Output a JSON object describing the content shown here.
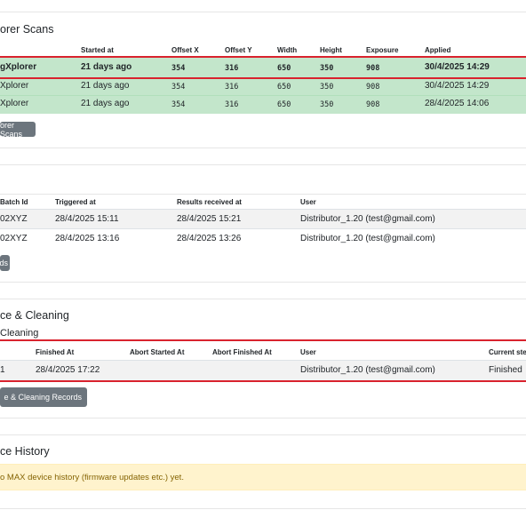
{
  "explorer_scans": {
    "title": "orer Scans",
    "columns": [
      "Started at",
      "Offset X",
      "Offset Y",
      "Width",
      "Height",
      "Exposure",
      "Applied"
    ],
    "rows": [
      {
        "name": "gXplorer",
        "started": "21 days ago",
        "offset_x": "354",
        "offset_y": "316",
        "width": "650",
        "height": "350",
        "exposure": "908",
        "applied": "30/4/2025 14:29"
      },
      {
        "name": "Xplorer",
        "started": "21 days ago",
        "offset_x": "354",
        "offset_y": "316",
        "width": "650",
        "height": "350",
        "exposure": "908",
        "applied": "30/4/2025 14:29"
      },
      {
        "name": "Xplorer",
        "started": "21 days ago",
        "offset_x": "354",
        "offset_y": "316",
        "width": "650",
        "height": "350",
        "exposure": "908",
        "applied": "28/4/2025 14:06"
      }
    ],
    "button": "orer Scans"
  },
  "batches": {
    "columns": [
      "Batch Id",
      "Triggered at",
      "Results received at",
      "User"
    ],
    "rows": [
      {
        "id": "02XYZ",
        "triggered": "28/4/2025 15:11",
        "received": "28/4/2025 15:21",
        "user": "Distributor_1.20 (test@gmail.com)"
      },
      {
        "id": "02XYZ",
        "triggered": "28/4/2025 13:16",
        "received": "28/4/2025 13:26",
        "user": "Distributor_1.20 (test@gmail.com)"
      }
    ],
    "button": "ds"
  },
  "maintenance": {
    "title": "ce & Cleaning",
    "subtitle": "Cleaning",
    "columns": [
      "Finished At",
      "Abort Started At",
      "Abort Finished At",
      "User",
      "Current step"
    ],
    "rows": [
      {
        "id": "1",
        "finished": "28/4/2025 17:22",
        "abort_started": "",
        "abort_finished": "",
        "user": "Distributor_1.20 (test@gmail.com)",
        "step": "Finished"
      }
    ],
    "button": "e & Cleaning Records"
  },
  "device_history": {
    "title": "ce History",
    "alert": "o MAX device history (firmware updates etc.) yet."
  },
  "colors": {
    "success_row": "#c3e6cb",
    "highlight_border": "#d9232e",
    "button": "#6c757d",
    "alert_bg": "#fff3cd",
    "alert_text": "#856404"
  }
}
